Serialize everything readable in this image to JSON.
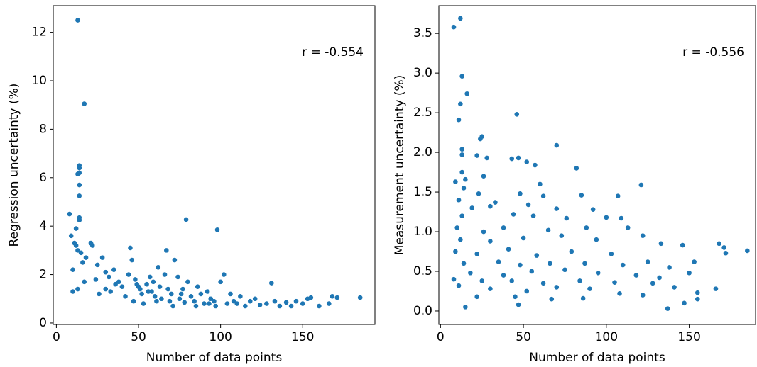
{
  "chart_data": [
    {
      "type": "scatter",
      "xlabel": "Number of data points",
      "ylabel": "Regression uncertainty (%)",
      "annotation": "r = -0.554",
      "color": "#1f77b4",
      "xlim": [
        -1.9,
        194
      ],
      "xticks": [
        0,
        50,
        100,
        150
      ],
      "ylim": [
        -0.06,
        13.1
      ],
      "yticks": [
        0,
        2,
        4,
        6,
        8,
        10,
        12
      ],
      "x": [
        13,
        17,
        79,
        98,
        14,
        14,
        13,
        14,
        14,
        14,
        8,
        14,
        14,
        12,
        9,
        11,
        12,
        13,
        15,
        10,
        21,
        22,
        18,
        16,
        10,
        13,
        17,
        25,
        28,
        30,
        32,
        35,
        38,
        40,
        44,
        45,
        46,
        48,
        50,
        52,
        55,
        57,
        58,
        60,
        62,
        64,
        66,
        67,
        68,
        70,
        72,
        74,
        75,
        77,
        80,
        82,
        84,
        86,
        88,
        90,
        92,
        94,
        96,
        100,
        102,
        104,
        106,
        108,
        110,
        112,
        115,
        118,
        121,
        124,
        128,
        131,
        133,
        136,
        140,
        143,
        146,
        150,
        153,
        155,
        160,
        166,
        168,
        171,
        185,
        42,
        47,
        53,
        56,
        63,
        69,
        78,
        85,
        93,
        97,
        36,
        30,
        24,
        26,
        33,
        49,
        51,
        59,
        61,
        71,
        76
      ],
      "y": [
        12.5,
        9.05,
        4.27,
        3.85,
        6.5,
        6.4,
        6.15,
        6.2,
        5.7,
        5.25,
        4.5,
        4.35,
        4.25,
        3.9,
        3.6,
        3.3,
        3.2,
        3.0,
        2.9,
        2.2,
        3.3,
        3.2,
        2.7,
        2.5,
        1.3,
        1.4,
        1.7,
        2.4,
        2.7,
        2.1,
        1.9,
        2.2,
        1.7,
        1.5,
        2.0,
        3.1,
        2.6,
        1.8,
        1.5,
        1.2,
        1.6,
        1.9,
        1.3,
        1.1,
        2.3,
        1.0,
        2.0,
        3.0,
        1.4,
        1.2,
        2.6,
        1.9,
        1.0,
        1.4,
        1.7,
        1.1,
        0.9,
        1.5,
        1.2,
        0.8,
        1.3,
        1.0,
        0.9,
        1.7,
        2.0,
        0.8,
        1.2,
        0.9,
        0.8,
        1.1,
        0.7,
        0.9,
        1.0,
        0.75,
        0.8,
        1.65,
        0.9,
        0.7,
        0.85,
        0.7,
        0.9,
        0.8,
        1.0,
        1.05,
        0.7,
        0.8,
        1.1,
        1.05,
        1.05,
        1.1,
        0.9,
        0.8,
        1.3,
        1.5,
        0.9,
        0.85,
        0.7,
        0.8,
        0.7,
        1.6,
        1.4,
        1.8,
        1.2,
        1.3,
        1.6,
        1.4,
        1.7,
        0.9,
        0.7,
        1.2
      ]
    },
    {
      "type": "scatter",
      "xlabel": "Number of data points",
      "ylabel": "Measurement uncertainty (%)",
      "annotation": "r = -0.556",
      "color": "#1f77b4",
      "xlim": [
        -1,
        190
      ],
      "xticks": [
        0,
        50,
        100,
        150
      ],
      "ylim": [
        -0.17,
        3.85
      ],
      "yticks": [
        {
          "value": 0,
          "label": "0.0"
        },
        {
          "value": 0.5,
          "label": "0.5"
        },
        {
          "value": 1,
          "label": "1.0"
        },
        {
          "value": 1.5,
          "label": "1.5"
        },
        {
          "value": 2,
          "label": "2.0"
        },
        {
          "value": 2.5,
          "label": "2.5"
        },
        {
          "value": 3,
          "label": "3.0"
        },
        {
          "value": 3.5,
          "label": "3.5"
        }
      ],
      "x": [
        8,
        12,
        13,
        16,
        12,
        11,
        46,
        25,
        24,
        13,
        13,
        28,
        70,
        22,
        43,
        47,
        52,
        57,
        13,
        15,
        9,
        26,
        82,
        60,
        121,
        14,
        23,
        48,
        62,
        107,
        11,
        33,
        53,
        85,
        19,
        30,
        70,
        92,
        13,
        44,
        56,
        76,
        100,
        109,
        10,
        26,
        38,
        65,
        88,
        113,
        122,
        12,
        30,
        50,
        73,
        94,
        133,
        146,
        168,
        171,
        172,
        185,
        9,
        22,
        41,
        58,
        79,
        103,
        125,
        14,
        35,
        48,
        66,
        87,
        110,
        138,
        153,
        18,
        38,
        55,
        75,
        95,
        118,
        132,
        150,
        8,
        25,
        43,
        62,
        84,
        105,
        128,
        11,
        30,
        52,
        70,
        90,
        108,
        141,
        155,
        22,
        45,
        67,
        86,
        122,
        147,
        15,
        47,
        137,
        166,
        155
      ],
      "y": [
        3.58,
        3.69,
        2.96,
        2.74,
        2.61,
        2.41,
        2.48,
        2.2,
        2.17,
        2.04,
        1.97,
        1.93,
        2.09,
        1.96,
        1.92,
        1.93,
        1.88,
        1.84,
        1.75,
        1.66,
        1.63,
        1.7,
        1.8,
        1.6,
        1.59,
        1.55,
        1.48,
        1.48,
        1.45,
        1.45,
        1.4,
        1.37,
        1.34,
        1.46,
        1.3,
        1.32,
        1.29,
        1.28,
        1.2,
        1.22,
        1.2,
        1.17,
        1.18,
        1.17,
        1.05,
        1.0,
        1.05,
        1.02,
        1.05,
        1.05,
        0.95,
        0.9,
        0.88,
        0.92,
        0.95,
        0.9,
        0.85,
        0.83,
        0.85,
        0.8,
        0.73,
        0.76,
        0.75,
        0.72,
        0.78,
        0.7,
        0.75,
        0.72,
        0.62,
        0.6,
        0.62,
        0.58,
        0.6,
        0.6,
        0.58,
        0.55,
        0.62,
        0.48,
        0.45,
        0.5,
        0.52,
        0.48,
        0.45,
        0.42,
        0.48,
        0.4,
        0.38,
        0.38,
        0.35,
        0.38,
        0.36,
        0.35,
        0.32,
        0.28,
        0.25,
        0.3,
        0.28,
        0.22,
        0.3,
        0.23,
        0.18,
        0.18,
        0.15,
        0.16,
        0.2,
        0.1,
        0.05,
        0.08,
        0.03,
        0.28,
        0.15
      ]
    }
  ]
}
